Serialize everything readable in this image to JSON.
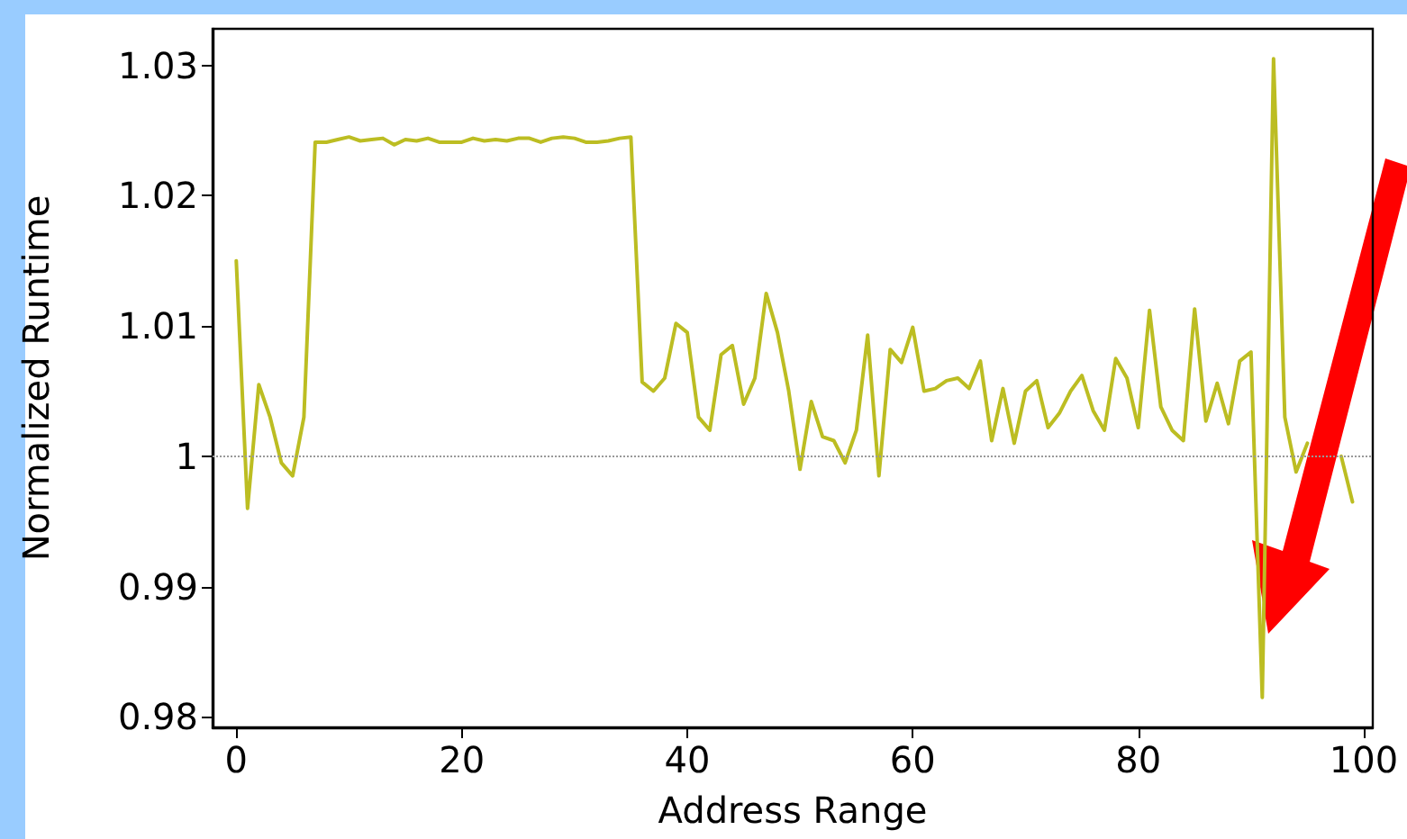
{
  "chart_data": {
    "type": "line",
    "xlabel": "Address Range",
    "ylabel": "Normalized Runtime",
    "x": [
      0,
      1,
      2,
      3,
      4,
      5,
      6,
      7,
      8,
      9,
      10,
      11,
      12,
      13,
      14,
      15,
      16,
      17,
      18,
      19,
      20,
      21,
      22,
      23,
      24,
      25,
      26,
      27,
      28,
      29,
      30,
      31,
      32,
      33,
      34,
      35,
      36,
      37,
      38,
      39,
      40,
      41,
      42,
      43,
      44,
      45,
      46,
      47,
      48,
      49,
      50,
      51,
      52,
      53,
      54,
      55,
      56,
      57,
      58,
      59,
      60,
      61,
      62,
      63,
      64,
      65,
      66,
      67,
      68,
      69,
      70,
      71,
      72,
      73,
      74,
      75,
      76,
      77,
      78,
      79,
      80,
      81,
      82,
      83,
      84,
      85,
      86,
      87,
      88,
      89,
      90,
      91,
      92,
      93,
      94,
      95,
      96,
      97,
      98,
      99
    ],
    "series": [
      {
        "color": "#bcbd22",
        "values": [
          1.015,
          0.996,
          1.0055,
          1.003,
          0.9995,
          0.9985,
          1.003,
          1.0241,
          1.0241,
          1.0243,
          1.0245,
          1.0242,
          1.0243,
          1.0244,
          1.0239,
          1.0243,
          1.0242,
          1.0244,
          1.0241,
          1.0241,
          1.0241,
          1.0244,
          1.0242,
          1.0243,
          1.0242,
          1.0244,
          1.0244,
          1.0241,
          1.0244,
          1.0245,
          1.0244,
          1.0241,
          1.0241,
          1.0242,
          1.0244,
          1.0245,
          1.0057,
          1.005,
          1.006,
          1.0102,
          1.0095,
          1.003,
          1.002,
          1.0078,
          1.0085,
          1.004,
          1.006,
          1.0125,
          1.0095,
          1.005,
          0.999,
          1.0042,
          1.0015,
          1.0012,
          0.9995,
          1.002,
          1.0093,
          0.9985,
          1.0082,
          1.0072,
          1.0099,
          1.005,
          1.0052,
          1.0058,
          1.006,
          1.0052,
          1.0073,
          1.0012,
          1.0052,
          1.001,
          1.005,
          1.0058,
          1.0022,
          1.0033,
          1.005,
          1.0062,
          1.0035,
          1.002,
          1.0075,
          1.006,
          1.0022,
          1.0112,
          1.0038,
          1.002,
          1.0012,
          1.0113,
          1.0027,
          1.0056,
          1.0025,
          1.0073,
          1.008,
          0.9815,
          1.0305,
          1.003,
          0.9988,
          1.001,
          null,
          null,
          1.0,
          0.9965
        ]
      }
    ],
    "xlim": [
      -2.1,
      100.8
    ],
    "xticks": [
      0,
      20,
      40,
      60,
      80,
      100
    ],
    "ylim": [
      0.9792,
      1.0328
    ],
    "yticks": [
      0.98,
      0.99,
      1.0,
      1.01,
      1.02,
      1.03
    ],
    "ref_lines": [
      {
        "axis": "y",
        "value": 1.0,
        "color": "#999999",
        "line_style": "dotted"
      }
    ],
    "grid": false,
    "marker": "none",
    "line_style": "solid"
  }
}
